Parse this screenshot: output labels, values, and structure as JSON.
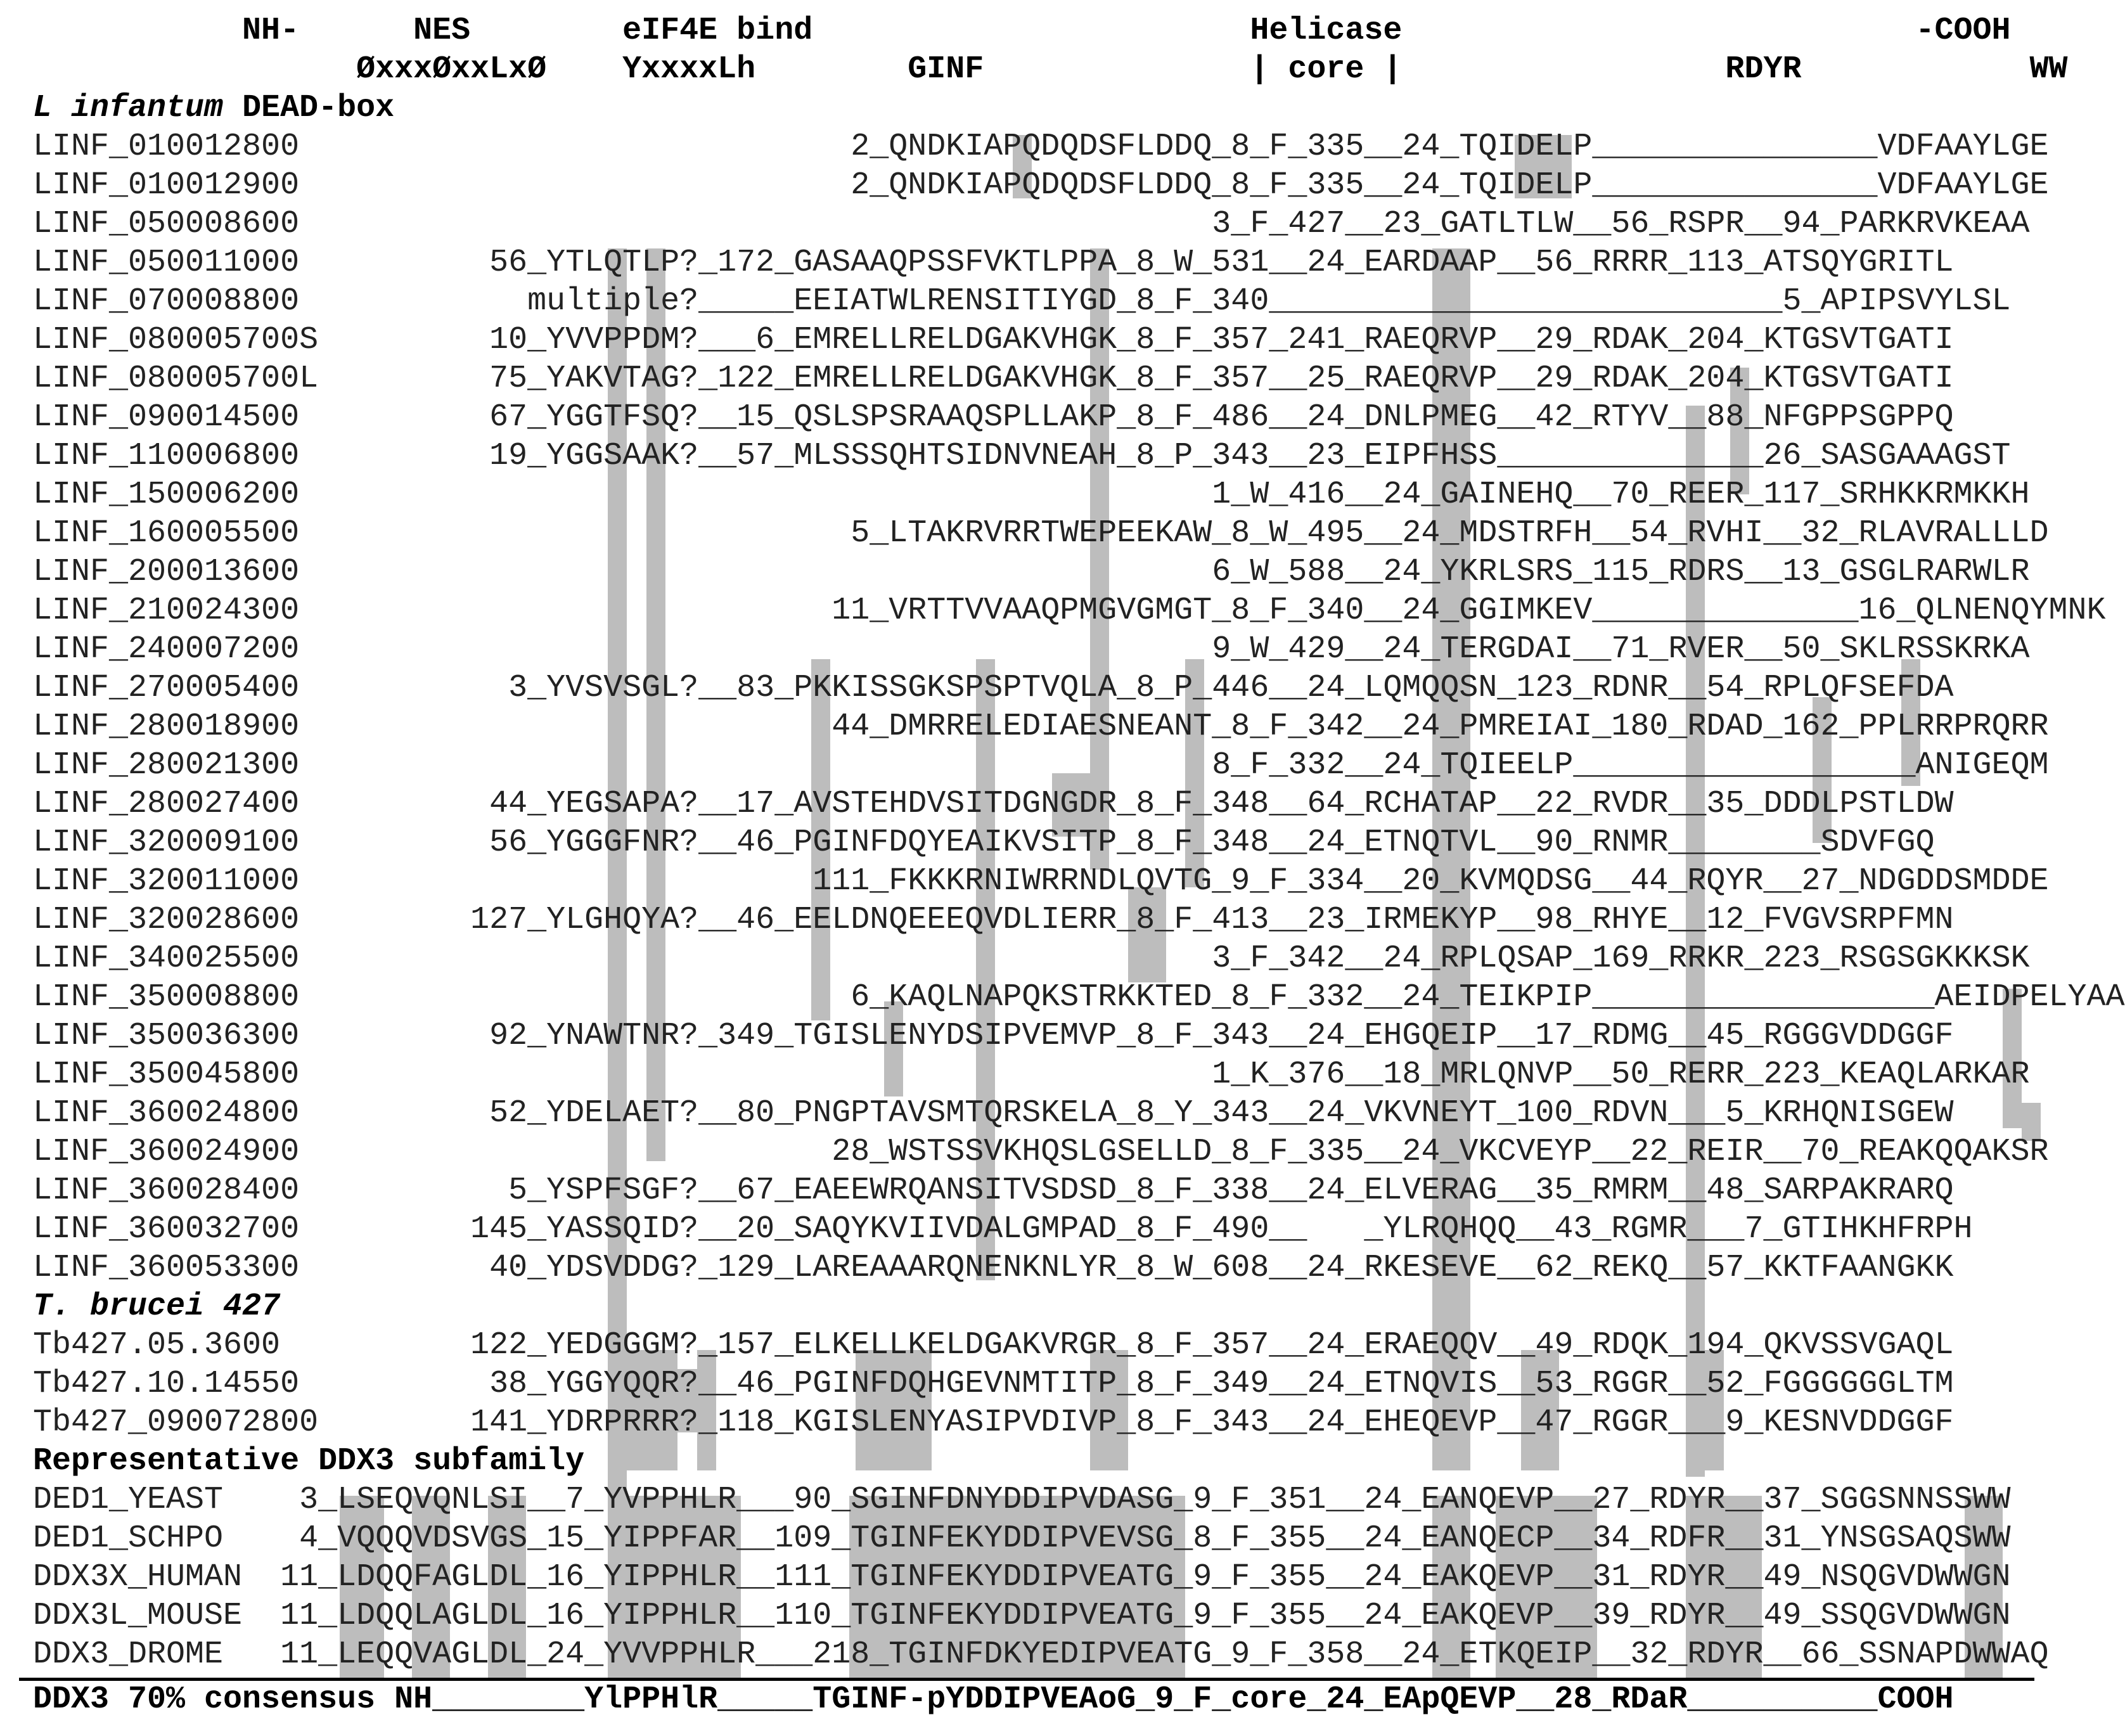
{
  "figure": {
    "header_top": "           NH-      NES        eIF4E bind                       Helicase                           -COOH",
    "header_motifs": "                 ØxxxØxxLxØ    YxxxxLh        GINF              | core |                 RDYR            WW",
    "section_linf_prefix": "L infantum",
    "section_linf_rest": " DEAD-box",
    "section_tb": "T. brucei 427",
    "section_ddx3": "Representative DDX3 subfamily",
    "footer": "DDX3 70% consensus NH________YlPPHlR_____TGINF-pYDDIPVEAoG_9_F_core_24_EApQEVP__28_RDaR__________COOH"
  },
  "linf_rows": [
    "LINF_010012800                             2_QNDKIAPQDQDSFLDDQ_8_F_335__24_TQIDELP_______________VDFAAYLGE",
    "LINF_010012900                             2_QNDKIAPQDQDSFLDDQ_8_F_335__24_TQIDELP_______________VDFAAYLGE",
    "LINF_050008600                                                3_F_427__23_GATLTLW__56_RSPR__94_PARKRVKEAA",
    "LINF_050011000          56_YTLQTLP?_172_GASAAQPSSFVKTLPPA_8_W_531__24_EARDAAP__56_RRRR_113_ATSQYGRITL",
    "LINF_070008800            multiple?_____EEIATWLRENSITIYGD_8_F_340___________________________5_APIPSVYLSL",
    "LINF_080005700S         10_YVVPPDM?___6_EMRELLRELDGAKVHGK_8_F_357_241_RAEQRVP__29_RDAK_204_KTGSVTGATI",
    "LINF_080005700L         75_YAKVTAG?_122_EMRELLRELDGAKVHGK_8_F_357__25_RAEQRVP__29_RDAK_204_KTGSVTGATI",
    "LINF_090014500          67_YGGTFSQ?__15_QSLSPSRAAQSPLLAKP_8_F_486__24_DNLPMEG__42_RTYV__88_NFGPPSGPPQ",
    "LINF_110006800          19_YGGSAAK?__57_MLSSSQHTSIDNVNEAH_8_P_343__23_EIPFHSS______________26_SASGAAAGST",
    "LINF_150006200                                                1_W_416__24_GAINEHQ__70_REER_117_SRHKKRMKKH",
    "LINF_160005500                             5_LTAKRVRRTWEPEEKAW_8_W_495__24_MDSTRFH__54_RVHI__32_RLAVRALLLD",
    "LINF_200013600                                                6_W_588__24_YKRLSRS_115_RDRS__13_GSGLRARWLR",
    "LINF_210024300                            11_VRTTVVAAQPMGVGMGT_8_F_340__24_GGIMKEV______________16_QLNENQYMNK",
    "LINF_240007200                                                9_W_429__24_TERGDAI__71_RVER__50_SKLRSSKRKA",
    "LINF_270005400           3_YVSVSGL?__83_PKKISSGKSPSPTVQLA_8_P_446__24_LQMQQSN_123_RDNR__54_RPLQFSEFDA",
    "LINF_280018900                            44_DMRRELEDIAESNEANT_8_F_342__24_PMREIAI_180_RDAD_162_PPLRRPRQRR",
    "LINF_280021300                                                8_F_332__24_TQIEELP__________________ANIGEQM",
    "LINF_280027400          44_YEGSAPA?__17_AVSTEHDVSITDGNGDR_8_F_348__64_RCHATAP__22_RVDR__35_DDDLPSTLDW",
    "LINF_320009100          56_YGGGFNR?__46_PGINFDQYEAIKVSITP_8_F_348__24_ETNQTVL__90_RNMR________SDVFGQ",
    "LINF_320011000                           111_FKKKRNIWRRNDLQVTG_9_F_334__20_KVMQDSG__44_RQYR__27_NDGDDSMDDE",
    "LINF_320028600         127_YLGHQYA?__46_EELDNQEEEQVDLIERR_8_F_413__23_IRMEKYP__98_RHYE__12_FVGVSRPFMN",
    "LINF_340025500                                                3_F_342__24_RPLQSAP_169_RRKR_223_RSGSGKKKSK",
    "LINF_350008800                             6_KAQLNAPQKSTRKKTED_8_F_332__24_TEIKPIP__________________AEIDPELYAA",
    "LINF_350036300          92_YNAWTNR?_349_TGISLENYDSIPVEMVP_8_F_343__24_EHGQEIP__17_RDMG__45_RGGGVDDGGF",
    "LINF_350045800                                                1_K_376__18_MRLQNVP__50_RERR_223_KEAQLARKAR",
    "LINF_360024800          52_YDELAET?__80_PNGPTAVSMTQRSKELA_8_Y_343__24_VKVNEYT_100_RDVN___5_KRHQNISGEW",
    "LINF_360024900                            28_WSTSSVKHQSLGSELLD_8_F_335__24_VKCVEYP__22_REIR__70_REAKQQAKSR",
    "LINF_360028400           5_YSPFSGF?__67_EAEEWRQANSITVSDSD_8_F_338__24_ELVERAG__35_RMRM__48_SARPAKRARQ",
    "LINF_360032700         145_YASSQID?__20_SAQYKVIIVDALGMPAD_8_F_490__   _YLRQHQQ__43_RGMR___7_GTIHKHFRPH",
    "LINF_360053300          40_YDSVDDG?_129_LAREAAARQNENKNLYR_8_W_608__24_RKESEVE__62_REKQ__57_KKTFAANGKK"
  ],
  "tb_rows": [
    "Tb427.05.3600          122_YEDGGGM?_157_ELKELLKELDGAKVRGR_8_F_357__24_ERAEQQV__49_RDQK_194_QKVSSVGAQL",
    "Tb427.10.14550          38_YGGYQQR?__46_PGINFDQHGEVNMTITP_8_F_349__24_ETNQVIS__53_RGGR__52_FGGGGGGLTM",
    "Tb427_090072800        141_YDRPRRR?_118_KGISLENYASIPVDIVP_8_F_343__24_EHEQEVP__47_RGGR___9_KESNVDDGGF"
  ],
  "ddx3_rows": [
    "DED1_YEAST    3_LSEQVQNLSI__7_YVPPHLR___90_SGINFDNYDDIPVDASG_9_F_351__24_EANQEVP__27_RDYR__37_SGGSNNSSWW",
    "DED1_SCHPO    4_VQQQVDSVGS_15_YIPPFAR__109_TGINFEKYDDIPVEVSG_8_F_355__24_EANQECP__34_RDFR__31_YNSGSAQSWW",
    "DDX3X_HUMAN  11_LDQQFAGLDL_16_YIPPHLR__111_TGINFEKYDDIPVEATG_9_F_355__24_EAKQEVP__31_RDYR__49_NSQGVDWWGN",
    "DDX3L_MOUSE  11_LDQQLAGLDL_16_YIPPHLR__110_TGINFEKYDDIPVEATG_9_F_355__24_EAKQEVP__39_RDYR__49_SSQGVDWWGN",
    "DDX3_DROME   11_LEQQVAGLDL_24_YVVPPHLR___218_TGINFDKYEDIPVEATG_9_F_358__24_ETKQEIP__32_RDYR__66_SSNAPDWWAQ"
  ],
  "shading_color": "#bdbdbd",
  "text_color": "#222222"
}
